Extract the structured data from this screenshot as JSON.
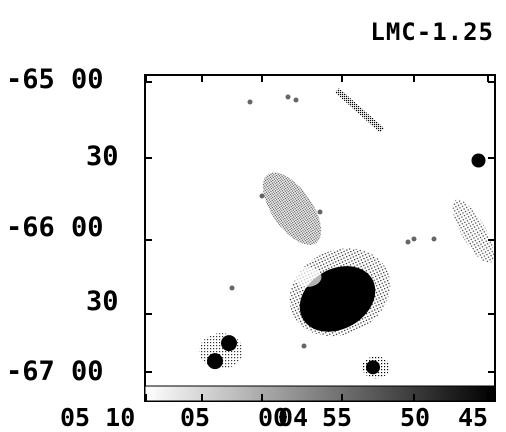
{
  "chart_data": {
    "type": "heatmap",
    "title": "LMC-1.25",
    "xlabel": "",
    "ylabel": "",
    "x_ticks": [
      "05 10",
      "05",
      "00",
      "04",
      "55",
      "50",
      "45"
    ],
    "y_ticks": [
      "-65 00",
      "30",
      "-66 00",
      "30",
      "-67 00"
    ],
    "grid": false,
    "legend": "none",
    "colorbar": "bottom",
    "colors": {
      "background": "#ffffff",
      "ink": "#000000"
    },
    "features": [
      {
        "name": "central-cloud",
        "ra_frac": 0.55,
        "dec_frac": 0.72,
        "intensity": 1.0
      },
      {
        "name": "central-extension",
        "ra_frac": 0.42,
        "dec_frac": 0.43,
        "intensity": 0.6
      },
      {
        "name": "upper-filament",
        "ra_frac": 0.62,
        "dec_frac": 0.12,
        "intensity": 0.5
      },
      {
        "name": "lower-left-clump",
        "ra_frac": 0.24,
        "dec_frac": 0.92,
        "intensity": 0.9
      },
      {
        "name": "lower-right-clump",
        "ra_frac": 0.66,
        "dec_frac": 0.94,
        "intensity": 0.8
      },
      {
        "name": "right-edge-source",
        "ra_frac": 0.97,
        "dec_frac": 0.5,
        "intensity": 0.7
      }
    ]
  }
}
